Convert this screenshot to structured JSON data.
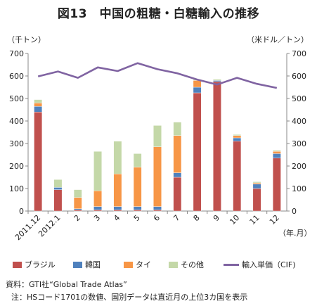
{
  "title": "図13　中国の粗糖・白糖輸入の推移",
  "left_unit": "（千トン）",
  "right_unit": "（米ドル／トン）",
  "x_unit": "（年.月）",
  "notes": {
    "source": "資料：GTI社“Global Trade Atlas”",
    "remark": "注：HSコード1701の数値、国別データは直近月の上位3カ国を表示"
  },
  "colors": {
    "brazil": "#c0504d",
    "korea": "#4f81bd",
    "thailand": "#f79646",
    "other": "#c4d8a8",
    "unit_price": "#8064a2"
  },
  "chart_data": {
    "type": "bar",
    "stacked": true,
    "categories": [
      "2011.12",
      "2012.1",
      "2",
      "3",
      "4",
      "5",
      "6",
      "7",
      "8",
      "9",
      "10",
      "11",
      "12"
    ],
    "series": [
      {
        "name": "ブラジル",
        "values": [
          440,
          95,
          5,
          5,
          5,
          5,
          5,
          150,
          525,
          575,
          310,
          100,
          235
        ]
      },
      {
        "name": "韓国",
        "values": [
          25,
          10,
          5,
          15,
          15,
          15,
          15,
          20,
          25,
          5,
          15,
          20,
          20
        ]
      },
      {
        "name": "タイ",
        "values": [
          15,
          0,
          50,
          70,
          145,
          175,
          265,
          165,
          30,
          0,
          10,
          5,
          10
        ]
      },
      {
        "name": "その他",
        "values": [
          15,
          35,
          35,
          175,
          145,
          60,
          95,
          60,
          5,
          5,
          5,
          5,
          5
        ]
      }
    ],
    "line_series": {
      "name": "輸入単価（CIF)",
      "axis": "right",
      "values": [
        598,
        620,
        592,
        638,
        622,
        657,
        630,
        612,
        584,
        562,
        592,
        565,
        547
      ]
    },
    "ylim": [
      0,
      700
    ],
    "y2lim": [
      0,
      700
    ],
    "yticks": [
      0,
      100,
      200,
      300,
      400,
      500,
      600,
      700
    ],
    "grid": false,
    "legend": "bottom"
  }
}
